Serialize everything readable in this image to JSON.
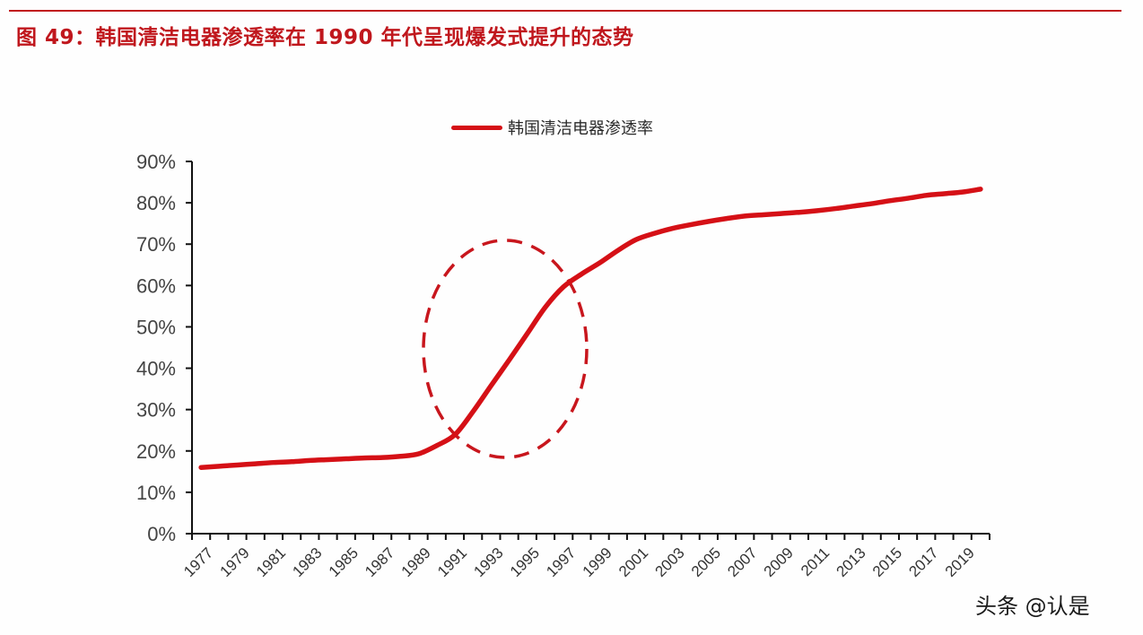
{
  "figure": {
    "title": "图 49：韩国清洁电器渗透率在 1990 年代呈现爆发式提升的态势",
    "accent_color": "#c0171d",
    "line_color": "#d51016"
  },
  "legend": {
    "label": "韩国清洁电器渗透率"
  },
  "watermark": "头条 @认是",
  "chart_data": {
    "type": "line",
    "title": "图 49：韩国清洁电器渗透率在 1990 年代呈现爆发式提升的态势",
    "xlabel": "",
    "ylabel": "",
    "ylim": [
      0,
      90
    ],
    "yticks": [
      "0%",
      "10%",
      "20%",
      "30%",
      "40%",
      "50%",
      "60%",
      "70%",
      "80%",
      "90%"
    ],
    "xtick_labels": [
      "1977",
      "1979",
      "1981",
      "1983",
      "1985",
      "1987",
      "1989",
      "1991",
      "1993",
      "1995",
      "1997",
      "1999",
      "2001",
      "2003",
      "2005",
      "2007",
      "2009",
      "2011",
      "2013",
      "2015",
      "2017",
      "2019"
    ],
    "grid": false,
    "legend_position": "top",
    "annotations": [
      "dashed ellipse highlighting 1990–1998 rapid rise"
    ],
    "x": [
      1977,
      1978,
      1979,
      1980,
      1981,
      1982,
      1983,
      1984,
      1985,
      1986,
      1987,
      1988,
      1989,
      1990,
      1991,
      1992,
      1993,
      1994,
      1995,
      1996,
      1997,
      1998,
      1999,
      2000,
      2001,
      2002,
      2003,
      2004,
      2005,
      2006,
      2007,
      2008,
      2009,
      2010,
      2011,
      2012,
      2013,
      2014,
      2015,
      2016,
      2017,
      2018,
      2019,
      2020
    ],
    "series": [
      {
        "name": "韩国清洁电器渗透率",
        "unit": "%",
        "values": [
          16.0,
          16.3,
          16.6,
          16.9,
          17.2,
          17.4,
          17.7,
          17.9,
          18.1,
          18.3,
          18.4,
          18.7,
          19.3,
          21.3,
          23.9,
          29.5,
          35.8,
          42.0,
          48.4,
          54.8,
          59.7,
          62.8,
          65.5,
          68.5,
          71.1,
          72.6,
          73.8,
          74.7,
          75.5,
          76.2,
          76.8,
          77.1,
          77.4,
          77.7,
          78.1,
          78.6,
          79.2,
          79.8,
          80.5,
          81.1,
          81.8,
          82.2,
          82.6,
          83.3
        ]
      }
    ]
  }
}
